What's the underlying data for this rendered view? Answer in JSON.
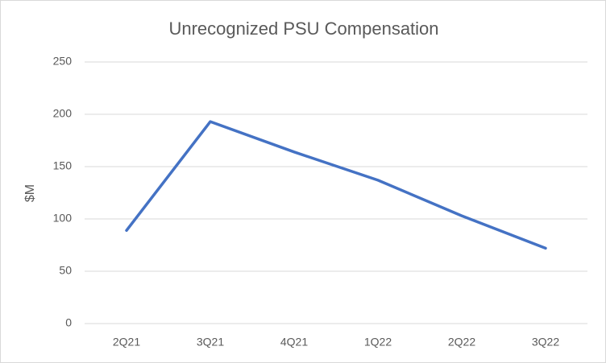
{
  "chart_data": {
    "type": "line",
    "title": "Unrecognized PSU Compensation",
    "y_label": "$M",
    "categories": [
      "2Q21",
      "3Q21",
      "4Q21",
      "1Q22",
      "2Q22",
      "3Q22"
    ],
    "values": [
      89,
      193,
      164,
      137,
      103,
      72
    ],
    "color": "#4472c4",
    "ylim": [
      0,
      250
    ],
    "yticks": [
      0,
      50,
      100,
      150,
      200,
      250
    ],
    "grid": true
  }
}
